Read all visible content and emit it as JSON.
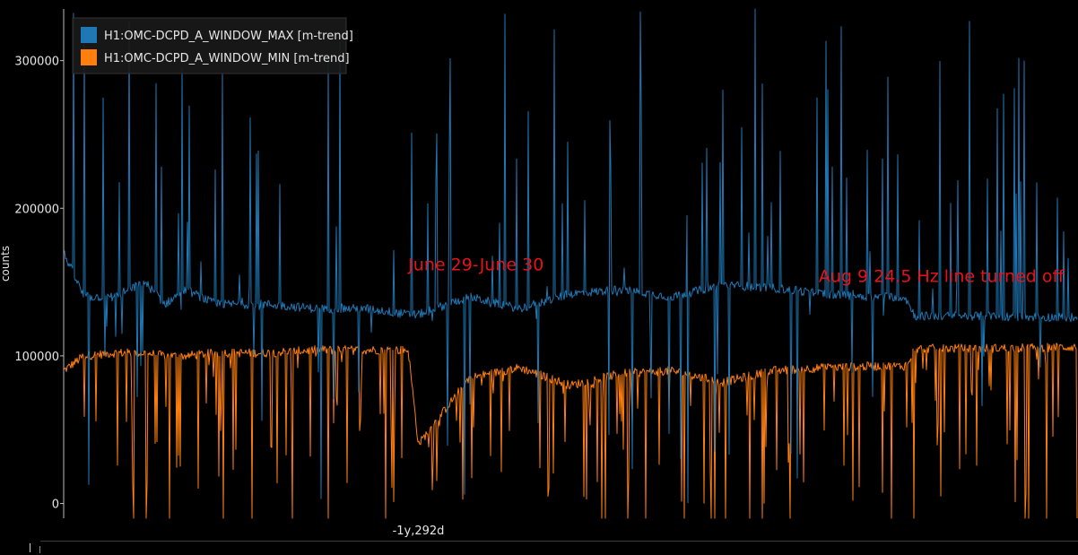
{
  "chart_data": {
    "type": "line",
    "title": "",
    "xlabel": "",
    "ylabel": "counts",
    "ylim": [
      -10000,
      335000
    ],
    "yticks": [
      0,
      100000,
      200000,
      300000
    ],
    "ytick_labels": [
      "0",
      "100000",
      "200000",
      "300000"
    ],
    "xticks": [
      0.35
    ],
    "xtick_labels": [
      "-1y,292d"
    ],
    "grid": false,
    "legend_position": "top-left",
    "colors": {
      "background": "#000000",
      "max": "#1f77b4",
      "min": "#ff7f0e",
      "annotation": "#e8121a"
    },
    "series": [
      {
        "name": "H1:OMC-DCPD_A_WINDOW_MAX [m-trend]",
        "color": "#1f77b4",
        "baseline_x": [
          0.0,
          0.02,
          0.05,
          0.08,
          0.1,
          0.12,
          0.15,
          0.2,
          0.25,
          0.3,
          0.34,
          0.35,
          0.4,
          0.45,
          0.5,
          0.55,
          0.6,
          0.65,
          0.7,
          0.75,
          0.8,
          0.83,
          0.84,
          0.9,
          1.0
        ],
        "baseline_y": [
          170000,
          140000,
          140000,
          150000,
          135000,
          145000,
          135000,
          135000,
          132000,
          132000,
          128000,
          128000,
          140000,
          132000,
          142000,
          145000,
          140000,
          148000,
          146000,
          142000,
          140000,
          140000,
          127000,
          127000,
          126000
        ]
      },
      {
        "name": "H1:OMC-DCPD_A_WINDOW_MIN [m-trend]",
        "color": "#ff7f0e",
        "baseline_x": [
          0.0,
          0.02,
          0.05,
          0.08,
          0.1,
          0.12,
          0.15,
          0.2,
          0.25,
          0.3,
          0.34,
          0.35,
          0.4,
          0.45,
          0.5,
          0.55,
          0.6,
          0.65,
          0.7,
          0.75,
          0.8,
          0.83,
          0.84,
          0.9,
          1.0
        ],
        "baseline_y": [
          90000,
          100000,
          102000,
          102000,
          100000,
          100000,
          102000,
          102000,
          104000,
          104000,
          104000,
          40000,
          85000,
          92000,
          80000,
          88000,
          90000,
          82000,
          90000,
          92000,
          93000,
          93000,
          105000,
          105000,
          106000
        ]
      }
    ],
    "annotations": [
      {
        "text": "June 29-June 30",
        "x": 0.34,
        "y": 158000
      },
      {
        "text": "Aug 9 24.5 Hz line turned off",
        "x": 0.745,
        "y": 150000
      }
    ]
  }
}
